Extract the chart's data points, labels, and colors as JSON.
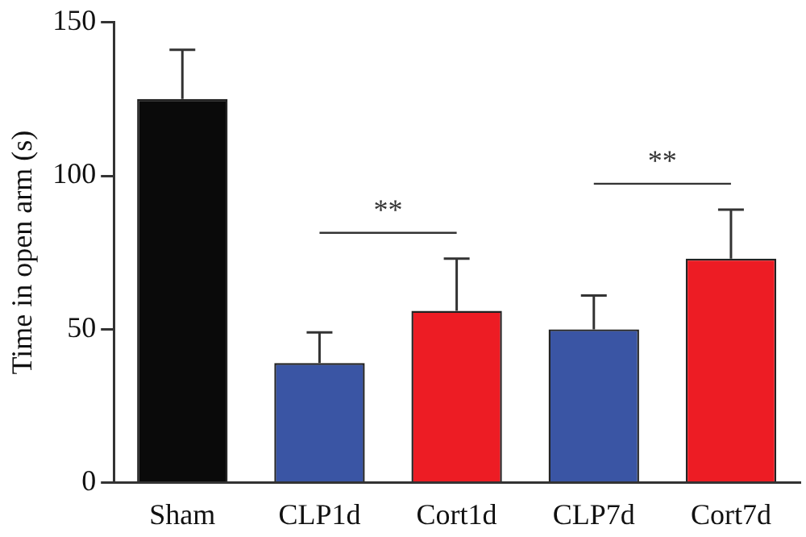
{
  "chart_data": {
    "type": "bar",
    "ylabel": "Time in open arm (s)",
    "categories": [
      "Sham",
      "CLP1d",
      "Cort1d",
      "CLP7d",
      "Cort7d"
    ],
    "values": [
      125,
      39,
      56,
      50,
      73
    ],
    "colors": [
      "#0a0a0a",
      "#3a55a4",
      "#ed1c24",
      "#3a55a4",
      "#ed1c24"
    ],
    "errors": [
      [
        125,
        141
      ],
      [
        39,
        49
      ],
      [
        56,
        73
      ],
      [
        50,
        61
      ],
      [
        73,
        89
      ]
    ],
    "ylim": [
      0,
      150
    ],
    "yticks": [
      0,
      50,
      100,
      150
    ],
    "grid": false,
    "legend": false,
    "annotations": [
      "**",
      "**"
    ]
  }
}
